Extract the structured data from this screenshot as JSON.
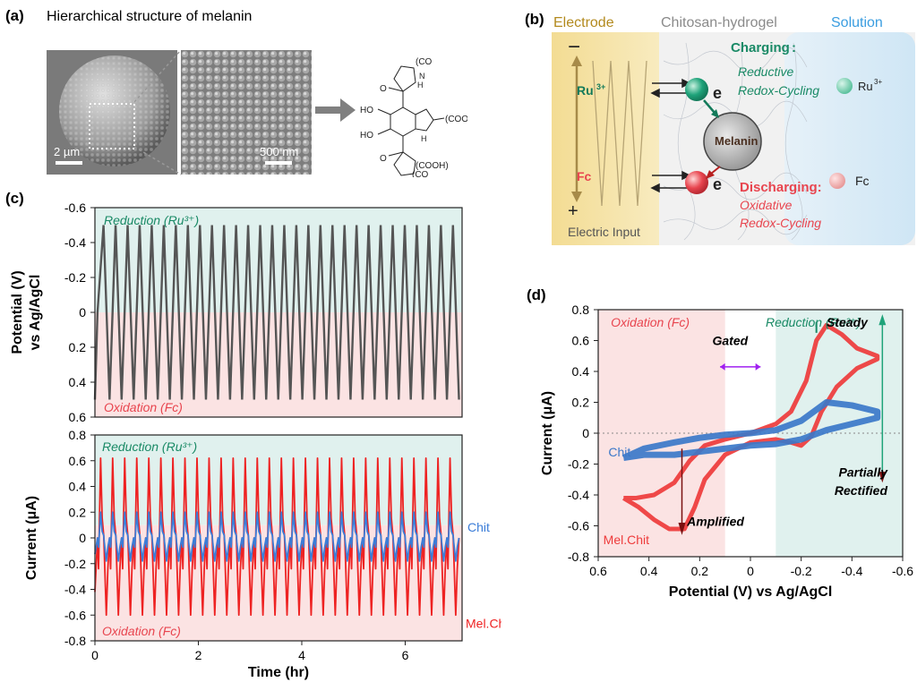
{
  "panels": {
    "a": {
      "label": "(a)",
      "title": "Hierarchical structure of melanin",
      "scale_left": "2 µm",
      "scale_right": "500 nm",
      "molecule_labels": {
        "cooh1": "(COOH)",
        "cooh2": "(COOH)",
        "nh1": "H",
        "nh2": "N",
        "nh3": "H",
        "ho1": "HO",
        "ho2": "HO",
        "o1": "O",
        "o2": "O",
        "co1": "(CO",
        "co2": "(CO"
      }
    },
    "b": {
      "label": "(b)",
      "electrode": "Electrode",
      "hydrogel": "Chitosan-hydrogel",
      "solution": "Solution",
      "minus": "−",
      "plus": "+",
      "ru_left": "Ru",
      "ru_left_sup": "3+",
      "fc_left": "Fc",
      "electric_input": "Electric Input",
      "e1": "e",
      "e2": "e",
      "melanin": "Melanin",
      "charging_title": "Charging",
      "charging_colon": ":",
      "charging_line1": "Reductive",
      "charging_line2": "Redox-Cycling",
      "ru_right": "Ru",
      "ru_right_sup": "3+",
      "discharging_title": "Discharging:",
      "discharging_line1": "Oxidative",
      "discharging_line2": "Redox-Cycling",
      "fc_right": "Fc",
      "colors": {
        "electrode": "#f7e3a1",
        "solution": "#d6ebf7",
        "ru": "#1fa37a",
        "fc": "#e8454f"
      }
    },
    "c": {
      "label": "(c)"
    },
    "d": {
      "label": "(d)"
    }
  },
  "chart_data": [
    {
      "id": "c-top",
      "type": "line",
      "ylabel_line1": "Potential (V)",
      "ylabel_line2": "vs Ag/AgCl",
      "xlim": [
        0,
        7.1
      ],
      "ylim": [
        -0.6,
        0.6
      ],
      "y_inverted": true,
      "yticks": [
        "-0.6",
        "-0.4",
        "-0.2",
        "0",
        "0.2",
        "0.4",
        "0.6"
      ],
      "ytick_values": [
        -0.6,
        -0.4,
        -0.2,
        0,
        0.2,
        0.4,
        0.6
      ],
      "region_top": "Reduction (Ru³⁺)",
      "region_bottom": "Oxidation (Fc)",
      "series": [
        {
          "cycles": 30,
          "period_hr": 0.233,
          "min": -0.5,
          "max": 0.5,
          "start_hr": 0.05,
          "color": "#555555"
        }
      ]
    },
    {
      "id": "c-bottom",
      "type": "line",
      "xlabel": "Time (hr)",
      "ylabel": "Current (μA)",
      "xlim": [
        0,
        7.1
      ],
      "ylim": [
        -0.8,
        0.8
      ],
      "xticks": [
        "0",
        "2",
        "4",
        "6"
      ],
      "xtick_values": [
        0,
        2,
        4,
        6
      ],
      "yticks": [
        "-0.8",
        "-0.6",
        "-0.4",
        "-0.2",
        "0",
        "0.2",
        "0.4",
        "0.6",
        "0.8"
      ],
      "ytick_values": [
        -0.8,
        -0.6,
        -0.4,
        -0.2,
        0,
        0.2,
        0.4,
        0.6,
        0.8
      ],
      "region_top": "Reduction (Ru³⁺)",
      "region_bottom": "Oxidation (Fc)",
      "series": [
        {
          "name": "Chit",
          "cycles": 30,
          "period_hr": 0.233,
          "peak_pos": 0.2,
          "peak_neg": -0.18,
          "color": "#3b7dd8"
        },
        {
          "name": "Mel.Chit",
          "cycles": 30,
          "period_hr": 0.233,
          "peak_pos": 0.62,
          "peak_neg": -0.6,
          "color": "#ee2222"
        }
      ]
    },
    {
      "id": "d",
      "type": "line",
      "xlabel": "Potential (V) vs Ag/AgCl",
      "ylabel": "Current (μA)",
      "xlim": [
        0.6,
        -0.6
      ],
      "ylim": [
        -0.8,
        0.8
      ],
      "xticks": [
        "0.6",
        "0.4",
        "0.2",
        "0",
        "-0.2",
        "-0.4",
        "-0.6"
      ],
      "xtick_values": [
        0.6,
        0.4,
        0.2,
        0,
        -0.2,
        -0.4,
        -0.6
      ],
      "yticks": [
        "-0.8",
        "-0.6",
        "-0.4",
        "-0.2",
        "0",
        "0.2",
        "0.4",
        "0.6",
        "0.8"
      ],
      "ytick_values": [
        -0.8,
        -0.6,
        -0.4,
        -0.2,
        0,
        0.2,
        0.4,
        0.6,
        0.8
      ],
      "region_left": "Oxidation (Fc)",
      "region_right": "Reduction (Ru³⁺)",
      "annotations": {
        "gated": "Gated",
        "steady": "Steady",
        "amplified": "Amplified",
        "partially_1": "Partially",
        "partially_2": "Rectified"
      },
      "series": [
        {
          "name": "Mel.Chit",
          "color": "#ee3b3b",
          "x": [
            0.5,
            0.45,
            0.38,
            0.3,
            0.24,
            0.18,
            0.1,
            0.0,
            -0.1,
            -0.16,
            -0.22,
            -0.26,
            -0.3,
            -0.36,
            -0.42,
            -0.5,
            -0.5,
            -0.42,
            -0.34,
            -0.28,
            -0.24,
            -0.2,
            -0.16,
            -0.1,
            0.0,
            0.1,
            0.18,
            0.22,
            0.26,
            0.32,
            0.38,
            0.44,
            0.5
          ],
          "y": [
            -0.42,
            -0.42,
            -0.4,
            -0.32,
            -0.18,
            -0.08,
            -0.04,
            0.0,
            0.06,
            0.14,
            0.34,
            0.6,
            0.7,
            0.64,
            0.55,
            0.5,
            0.48,
            0.42,
            0.3,
            0.14,
            -0.02,
            -0.08,
            -0.06,
            -0.04,
            -0.06,
            -0.14,
            -0.3,
            -0.48,
            -0.62,
            -0.62,
            -0.56,
            -0.48,
            -0.42
          ]
        },
        {
          "name": "Chit",
          "color": "#3b78c9",
          "x": [
            0.5,
            0.42,
            0.3,
            0.2,
            0.1,
            0.0,
            -0.1,
            -0.2,
            -0.3,
            -0.4,
            -0.5,
            -0.5,
            -0.4,
            -0.3,
            -0.2,
            -0.1,
            0.0,
            0.1,
            0.2,
            0.3,
            0.42,
            0.5
          ],
          "y": [
            -0.16,
            -0.1,
            -0.06,
            -0.03,
            -0.01,
            0.0,
            0.02,
            0.08,
            0.2,
            0.18,
            0.14,
            0.1,
            0.06,
            0.02,
            -0.04,
            -0.07,
            -0.08,
            -0.1,
            -0.12,
            -0.14,
            -0.14,
            -0.16
          ]
        }
      ]
    }
  ]
}
